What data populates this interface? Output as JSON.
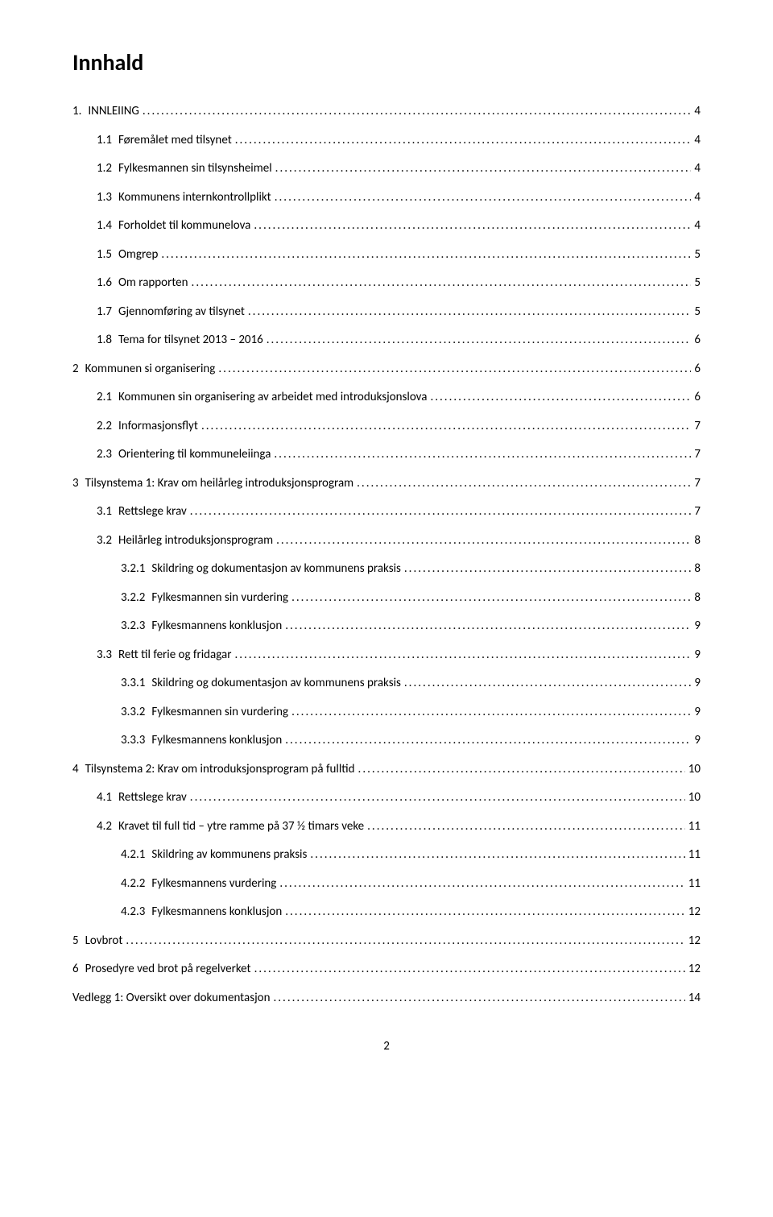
{
  "title": "Innhald",
  "pageNumber": "2",
  "toc": [
    {
      "num": "1.",
      "label": "INNLEIING",
      "page": "4",
      "indent": 0
    },
    {
      "num": "1.1",
      "label": "Føremålet med tilsynet",
      "page": "4",
      "indent": 1
    },
    {
      "num": "1.2",
      "label": "Fylkesmannen sin tilsynsheimel",
      "page": "4",
      "indent": 1
    },
    {
      "num": "1.3",
      "label": "Kommunens internkontrollplikt",
      "page": "4",
      "indent": 1
    },
    {
      "num": "1.4",
      "label": "Forholdet til kommunelova",
      "page": "4",
      "indent": 1
    },
    {
      "num": "1.5",
      "label": "Omgrep",
      "page": "5",
      "indent": 1
    },
    {
      "num": "1.6",
      "label": "Om rapporten",
      "page": "5",
      "indent": 1
    },
    {
      "num": "1.7",
      "label": "Gjennomføring av tilsynet",
      "page": "5",
      "indent": 1
    },
    {
      "num": "1.8",
      "label": "Tema for tilsynet 2013 – 2016",
      "page": "6",
      "indent": 1
    },
    {
      "num": "2",
      "label": "Kommunen si organisering",
      "page": "6",
      "indent": 0
    },
    {
      "num": "2.1",
      "label": "Kommunen sin organisering av arbeidet med introduksjonslova",
      "page": "6",
      "indent": 1
    },
    {
      "num": "2.2",
      "label": "Informasjonsflyt",
      "page": "7",
      "indent": 1
    },
    {
      "num": "2.3",
      "label": "Orientering til kommuneleiinga",
      "page": "7",
      "indent": 1
    },
    {
      "num": "3",
      "label": "Tilsynstema 1: Krav om heilårleg introduksjonsprogram",
      "page": "7",
      "indent": 0
    },
    {
      "num": "3.1",
      "label": "Rettslege krav",
      "page": "7",
      "indent": 1
    },
    {
      "num": "3.2",
      "label": "Heilårleg introduksjonsprogram",
      "page": "8",
      "indent": 1
    },
    {
      "num": "3.2.1",
      "label": "Skildring og dokumentasjon av kommunens praksis",
      "page": "8",
      "indent": 2
    },
    {
      "num": "3.2.2",
      "label": "Fylkesmannen sin vurdering",
      "page": "8",
      "indent": 2
    },
    {
      "num": "3.2.3",
      "label": "Fylkesmannens konklusjon",
      "page": "9",
      "indent": 2
    },
    {
      "num": "3.3",
      "label": "Rett til ferie og fridagar",
      "page": "9",
      "indent": 1
    },
    {
      "num": "3.3.1",
      "label": "Skildring og dokumentasjon av kommunens praksis",
      "page": "9",
      "indent": 2
    },
    {
      "num": "3.3.2",
      "label": "Fylkesmannen sin vurdering",
      "page": "9",
      "indent": 2
    },
    {
      "num": "3.3.3",
      "label": "Fylkesmannens konklusjon",
      "page": "9",
      "indent": 2
    },
    {
      "num": "4",
      "label": "Tilsynstema 2: Krav om introduksjonsprogram på fulltid",
      "page": "10",
      "indent": 0
    },
    {
      "num": "4.1",
      "label": "Rettslege krav",
      "page": "10",
      "indent": 1
    },
    {
      "num": "4.2",
      "label": "Kravet til full tid – ytre ramme på 37 ½ timars veke",
      "page": "11",
      "indent": 1
    },
    {
      "num": "4.2.1",
      "label": "Skildring av kommunens praksis",
      "page": "11",
      "indent": 2
    },
    {
      "num": "4.2.2",
      "label": "Fylkesmannens vurdering",
      "page": "11",
      "indent": 2
    },
    {
      "num": "4.2.3",
      "label": "Fylkesmannens konklusjon",
      "page": "12",
      "indent": 2
    },
    {
      "num": "5",
      "label": "Lovbrot",
      "page": "12",
      "indent": 0
    },
    {
      "num": "6",
      "label": "Prosedyre ved brot på regelverket",
      "page": "12",
      "indent": 0
    },
    {
      "num": "",
      "label": "Vedlegg 1: Oversikt over dokumentasjon",
      "page": "14",
      "indent": 0
    }
  ]
}
